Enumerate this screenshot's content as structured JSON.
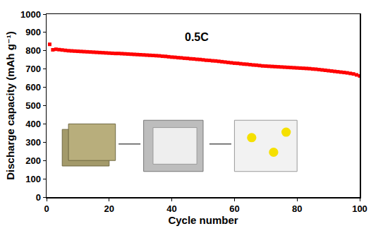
{
  "chart_data": {
    "type": "scatter",
    "x": [
      1,
      2,
      3,
      4,
      5,
      6,
      7,
      8,
      9,
      10,
      11,
      12,
      13,
      14,
      15,
      16,
      17,
      18,
      19,
      20,
      21,
      22,
      23,
      24,
      25,
      26,
      27,
      28,
      29,
      30,
      31,
      32,
      33,
      34,
      35,
      36,
      37,
      38,
      39,
      40,
      41,
      42,
      43,
      44,
      45,
      46,
      47,
      48,
      49,
      50,
      51,
      52,
      53,
      54,
      55,
      56,
      57,
      58,
      59,
      60,
      61,
      62,
      63,
      64,
      65,
      66,
      67,
      68,
      69,
      70,
      71,
      72,
      73,
      74,
      75,
      76,
      77,
      78,
      79,
      80,
      81,
      82,
      83,
      84,
      85,
      86,
      87,
      88,
      89,
      90,
      91,
      92,
      93,
      94,
      95,
      96,
      97,
      98,
      99,
      100
    ],
    "values": [
      835,
      805,
      808,
      806,
      804,
      802,
      800,
      799,
      798,
      797,
      796,
      795,
      794,
      793,
      792,
      791,
      790,
      789,
      788,
      787,
      786,
      785,
      785,
      784,
      783,
      782,
      781,
      780,
      779,
      778,
      777,
      776,
      775,
      774,
      773,
      772,
      770,
      769,
      767,
      765,
      764,
      762,
      761,
      759,
      758,
      756,
      755,
      753,
      752,
      750,
      748,
      747,
      745,
      744,
      742,
      740,
      738,
      736,
      734,
      732,
      731,
      729,
      727,
      726,
      724,
      722,
      721,
      719,
      717,
      716,
      715,
      714,
      713,
      712,
      711,
      710,
      709,
      708,
      707,
      706,
      705,
      704,
      703,
      702,
      700,
      699,
      697,
      695,
      693,
      691,
      689,
      687,
      685,
      683,
      681,
      679,
      676,
      673,
      668,
      662
    ],
    "color": "#ff0000",
    "marker": "square",
    "xlabel": "Cycle number",
    "ylabel": "Discharge capacity (mAh g⁻¹)",
    "xlim": [
      0,
      100
    ],
    "xticks": [
      0,
      20,
      40,
      60,
      80,
      100
    ],
    "ylim": [
      0,
      1000
    ],
    "yticks": [
      0,
      100,
      200,
      300,
      400,
      500,
      600,
      700,
      800,
      900,
      1000
    ],
    "grid": false,
    "annotations": [
      {
        "text": "0.5C",
        "x": 48,
        "y": 875
      }
    ]
  }
}
